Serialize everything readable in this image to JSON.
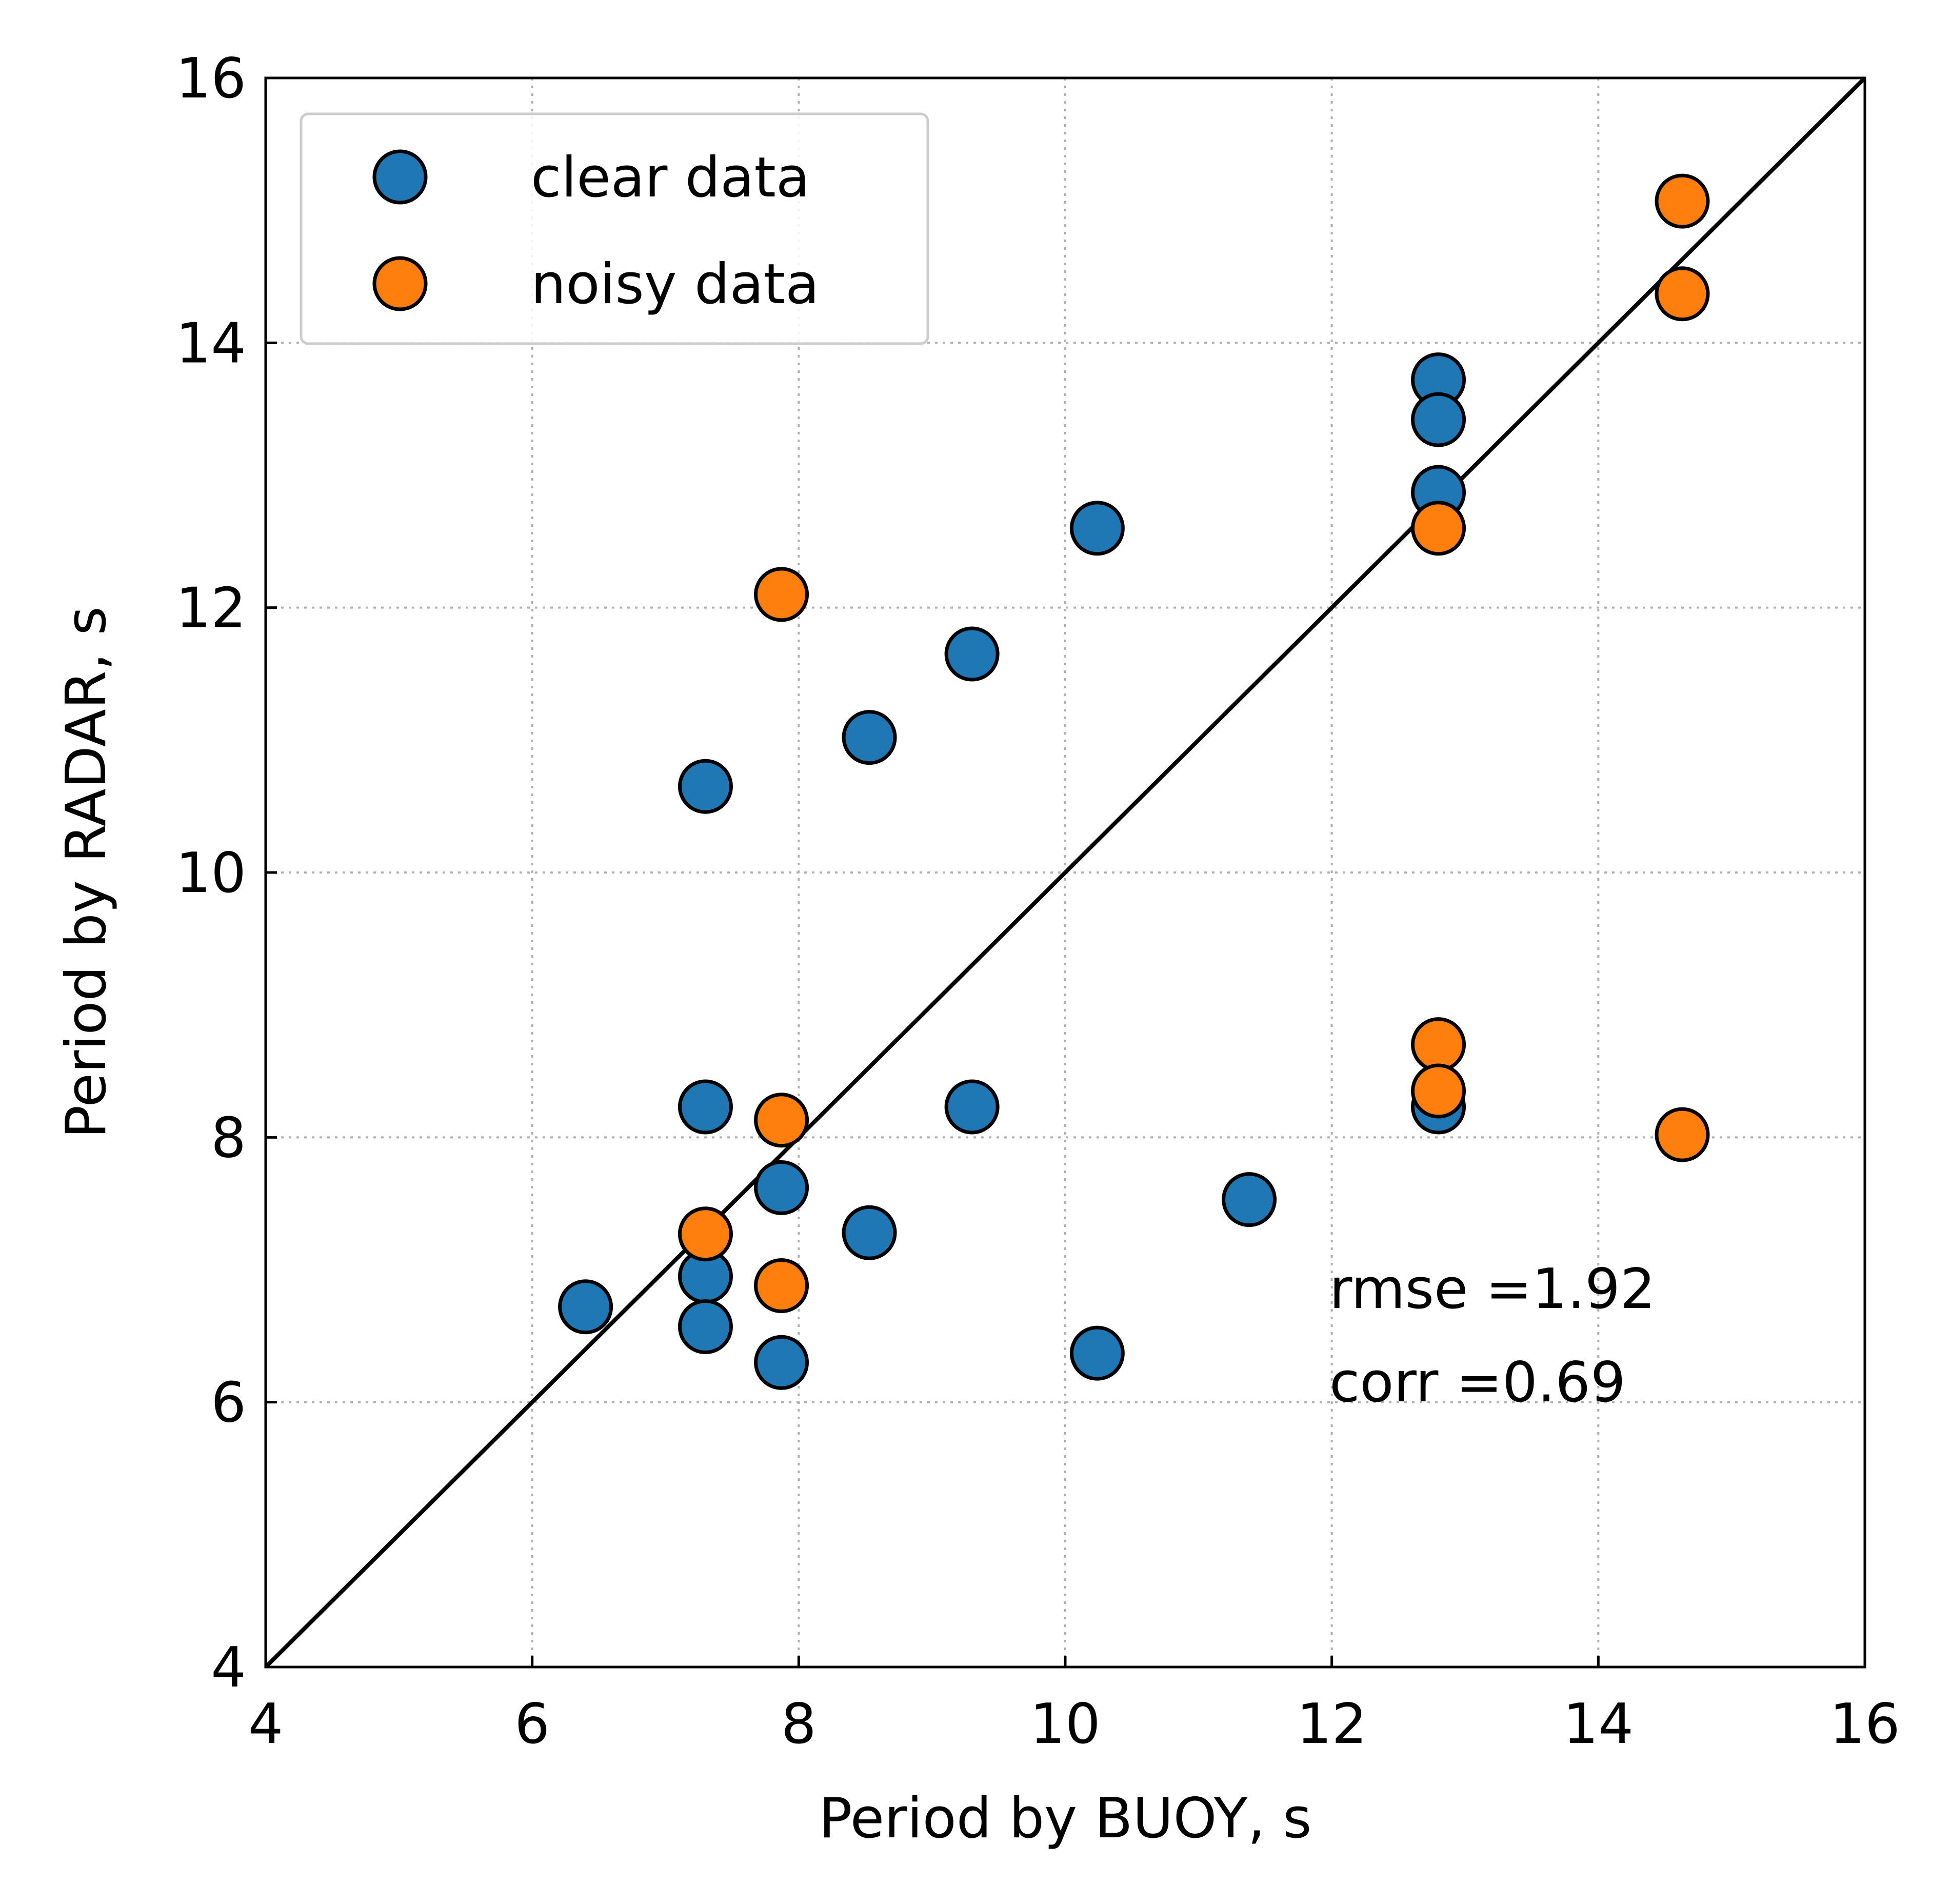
{
  "chart_data": {
    "type": "scatter",
    "xlabel": "Period by BUOY, s",
    "ylabel": "Period by RADAR, s",
    "xlim": [
      4,
      16
    ],
    "ylim": [
      4,
      16
    ],
    "xticks": [
      "4",
      "6",
      "8",
      "10",
      "12",
      "14",
      "16"
    ],
    "yticks": [
      "4",
      "6",
      "8",
      "10",
      "12",
      "14",
      "16"
    ],
    "grid": true,
    "legend_position": "upper-left",
    "reference_line": "y = x",
    "series": [
      {
        "name": "clear data",
        "color": "#1f77b4",
        "points": [
          {
            "x": 6.4,
            "y": 6.72
          },
          {
            "x": 7.3,
            "y": 10.65
          },
          {
            "x": 7.3,
            "y": 8.23
          },
          {
            "x": 7.3,
            "y": 6.95
          },
          {
            "x": 7.3,
            "y": 6.57
          },
          {
            "x": 7.87,
            "y": 7.62
          },
          {
            "x": 7.87,
            "y": 6.3
          },
          {
            "x": 8.53,
            "y": 11.02
          },
          {
            "x": 8.53,
            "y": 7.28
          },
          {
            "x": 9.3,
            "y": 11.65
          },
          {
            "x": 9.3,
            "y": 8.23
          },
          {
            "x": 10.24,
            "y": 12.6
          },
          {
            "x": 10.24,
            "y": 6.37
          },
          {
            "x": 11.38,
            "y": 7.53
          },
          {
            "x": 12.8,
            "y": 13.72
          },
          {
            "x": 12.8,
            "y": 13.42
          },
          {
            "x": 12.8,
            "y": 12.87
          },
          {
            "x": 12.8,
            "y": 8.23
          }
        ]
      },
      {
        "name": "noisy data",
        "color": "#ff7f0e",
        "points": [
          {
            "x": 7.3,
            "y": 7.27
          },
          {
            "x": 7.87,
            "y": 12.1
          },
          {
            "x": 7.87,
            "y": 8.13
          },
          {
            "x": 7.87,
            "y": 6.88
          },
          {
            "x": 12.8,
            "y": 12.6
          },
          {
            "x": 12.8,
            "y": 8.7
          },
          {
            "x": 12.8,
            "y": 8.35
          },
          {
            "x": 14.63,
            "y": 15.07
          },
          {
            "x": 14.63,
            "y": 14.37
          },
          {
            "x": 14.63,
            "y": 8.02
          }
        ]
      }
    ],
    "annotations": [
      "rmse =1.92",
      "corr =0.69"
    ]
  }
}
